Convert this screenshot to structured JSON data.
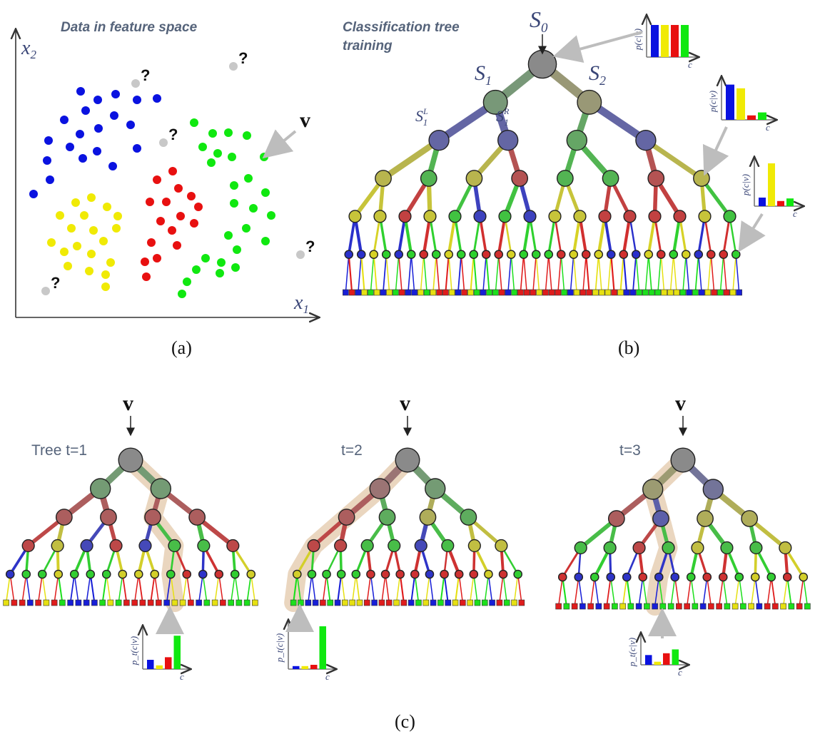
{
  "panel_a": {
    "title": "Data in feature space",
    "x_axis_label": "x",
    "x_axis_sub": "1",
    "y_axis_label": "x",
    "y_axis_sub": "2",
    "v_label": "v",
    "question_mark": "?",
    "caption": "(a)"
  },
  "panel_b": {
    "title_line1": "Classification tree",
    "title_line2": "training",
    "root_label": "S",
    "root_sub": "0",
    "s1_label": "S",
    "s1_sub": "1",
    "s2_label": "S",
    "s2_sub": "2",
    "s1L_label": "S",
    "s1L_sub": "1",
    "s1L_sup": "L",
    "s1R_label": "S",
    "s1R_sub": "1",
    "s1R_sup": "R",
    "hist_ylabel": "p(c|v)",
    "hist_xlabel": "c",
    "caption": "(b)"
  },
  "panel_c": {
    "v_label": "v",
    "trees": [
      {
        "label": "Tree t=1"
      },
      {
        "label": "t=2"
      },
      {
        "label": "t=3"
      }
    ],
    "hist_ylabel": "p_t(c|v)",
    "hist_xlabel": "c",
    "caption": "(c)"
  },
  "colors": {
    "blue": "#0a12e0",
    "yellow": "#f0ea05",
    "red": "#e81010",
    "green": "#10e810",
    "gray_point": "#c8c8c8",
    "path_highlight": "#d9b58a",
    "node_gray": "#8a8a8a"
  },
  "histograms": {
    "root": [
      0.9,
      0.9,
      0.9,
      0.9
    ],
    "mid": [
      0.95,
      0.85,
      0.12,
      0.2
    ],
    "lower": [
      0.2,
      1.0,
      0.12,
      0.18
    ],
    "tree1": [
      0.25,
      0.1,
      0.32,
      0.9
    ],
    "tree2": [
      0.07,
      0.07,
      0.1,
      1.0
    ],
    "tree3": [
      0.38,
      0.12,
      0.45,
      0.6
    ]
  }
}
